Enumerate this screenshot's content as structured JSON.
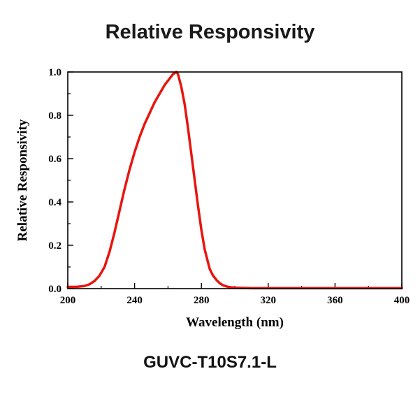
{
  "title": "Relative Responsivity",
  "caption": "GUVC-T10S7.1-L",
  "chart_data": {
    "type": "line",
    "title": "Relative Responsivity",
    "xlabel": "Wavelength (nm)",
    "ylabel": "Relative Responsivity",
    "xlim": [
      200,
      400
    ],
    "ylim": [
      0.0,
      1.0
    ],
    "x_ticks": [
      200,
      240,
      280,
      320,
      360,
      400
    ],
    "x_tick_labels": [
      "200",
      "240",
      "280",
      "320",
      "360",
      "400"
    ],
    "y_ticks": [
      0.0,
      0.2,
      0.4,
      0.6,
      0.8,
      1.0
    ],
    "y_tick_labels": [
      "0.0",
      "0.2",
      "0.4",
      "0.6",
      "0.8",
      "1.0"
    ],
    "x_minor_step": 20,
    "y_minor_step": 0.1,
    "grid": false,
    "legend": "none",
    "line_color": "#e8150f",
    "line_width": 3.5,
    "series": [
      {
        "name": "relative-responsivity",
        "x": [
          200,
          205,
          210,
          213,
          216,
          219,
          222,
          225,
          228,
          231,
          234,
          237,
          240,
          243,
          246,
          249,
          252,
          255,
          258,
          261,
          263,
          265,
          266,
          268,
          270,
          272,
          274,
          276,
          278,
          280,
          282,
          284,
          285,
          287,
          289,
          291,
          293,
          296,
          300,
          310,
          320,
          340,
          360,
          380,
          400
        ],
        "y": [
          0.008,
          0.008,
          0.012,
          0.02,
          0.035,
          0.06,
          0.1,
          0.17,
          0.26,
          0.36,
          0.46,
          0.55,
          0.63,
          0.7,
          0.76,
          0.81,
          0.86,
          0.9,
          0.94,
          0.97,
          0.99,
          1.0,
          0.99,
          0.93,
          0.85,
          0.74,
          0.62,
          0.5,
          0.38,
          0.27,
          0.18,
          0.12,
          0.09,
          0.06,
          0.04,
          0.025,
          0.015,
          0.008,
          0.004,
          0.002,
          0.002,
          0.002,
          0.002,
          0.002,
          0.002
        ]
      }
    ]
  }
}
